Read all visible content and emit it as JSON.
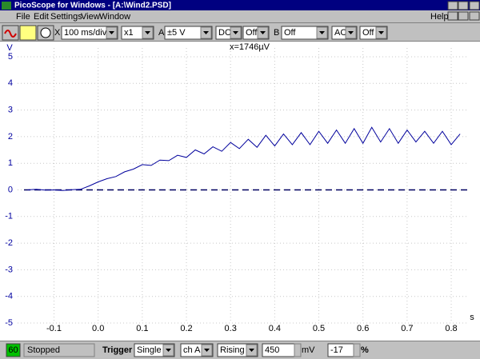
{
  "window": {
    "title": "PicoScope for Windows - [A:\\Wind2.PSD]",
    "menu": [
      "File",
      "Edit",
      "Settings",
      "View",
      "Window"
    ],
    "help": "Help",
    "toolbar": {
      "timebase_label": "X",
      "timebase": "100 ms/div",
      "multiplier": "x1",
      "channel_a_label": "A",
      "channel_a_range": "±5 V",
      "channel_a_coupling": "DC",
      "channel_a_extra": "Off",
      "channel_b_label": "B",
      "channel_b_range": "Off",
      "channel_b_coupling": "AC",
      "channel_b_extra": "Off"
    },
    "status": {
      "indicator": "60",
      "state": "Stopped",
      "trigger_label": "Trigger",
      "trigger_mode": "Single",
      "trigger_channel": "ch A",
      "trigger_edge": "Rising",
      "trigger_level": "450",
      "trigger_level_unit": "mV",
      "pretrigger": "-17",
      "pretrigger_unit": "%"
    }
  },
  "chart_data": {
    "type": "line",
    "annotation": "x=1746µV",
    "x_label": "s",
    "y_label": "V",
    "x": [
      -0.16,
      -0.14,
      -0.12,
      -0.1,
      -0.08,
      -0.06,
      -0.04,
      -0.02,
      0.0,
      0.02,
      0.04,
      0.06,
      0.08,
      0.1,
      0.12,
      0.14,
      0.16,
      0.18,
      0.2,
      0.22,
      0.24,
      0.26,
      0.28,
      0.3,
      0.32,
      0.34,
      0.36,
      0.38,
      0.4,
      0.42,
      0.44,
      0.46,
      0.48,
      0.5,
      0.52,
      0.54,
      0.56,
      0.58,
      0.6,
      0.62,
      0.64,
      0.66,
      0.68,
      0.7,
      0.72,
      0.74,
      0.76,
      0.78,
      0.8,
      0.82
    ],
    "values": [
      0.0,
      0.02,
      -0.01,
      0.0,
      -0.02,
      0.01,
      0.02,
      0.15,
      0.3,
      0.42,
      0.5,
      0.68,
      0.78,
      0.95,
      0.92,
      1.12,
      1.1,
      1.3,
      1.22,
      1.5,
      1.35,
      1.62,
      1.45,
      1.78,
      1.55,
      1.9,
      1.6,
      2.05,
      1.65,
      2.1,
      1.7,
      2.15,
      1.7,
      2.2,
      1.75,
      2.25,
      1.75,
      2.3,
      1.75,
      2.35,
      1.8,
      2.3,
      1.75,
      2.25,
      1.8,
      2.2,
      1.75,
      2.2,
      1.7,
      2.1
    ],
    "color": "#00009c",
    "axis_color": "#0000a0",
    "xlim": [
      -0.168,
      0.838
    ],
    "ylim": [
      -5,
      5
    ],
    "xticks": [
      -0.1,
      {
        "value": 0,
        "label": "0.0"
      },
      0.1,
      0.2,
      0.3,
      0.4,
      0.5,
      0.6,
      0.7,
      0.8
    ],
    "yticks": [
      -5,
      -4,
      -3,
      -2,
      -1,
      0,
      1,
      2,
      3,
      4,
      5
    ],
    "grid": true
  }
}
